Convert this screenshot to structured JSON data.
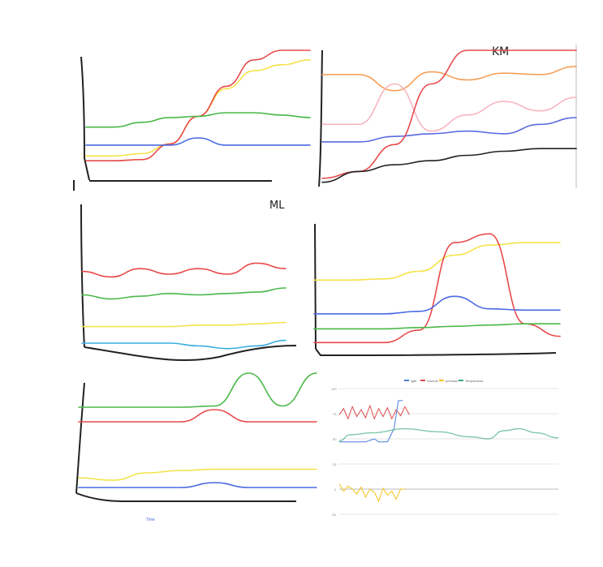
{
  "annotations": {
    "top_right_initials": "KM",
    "middle_left_initials": "ML",
    "bottom_left_axis_text": "Time"
  },
  "legend": {
    "items": [
      {
        "label": "light",
        "color": "#4a7fe0"
      },
      {
        "label": "Sounds",
        "color": "#e04b4b"
      },
      {
        "label": "pressure",
        "color": "#f2c21b"
      },
      {
        "label": "Temperature",
        "color": "#3cab7a"
      }
    ]
  },
  "chart_data": [
    {
      "type": "line",
      "style": "hand-drawn sketch",
      "panel": "top-left",
      "series": [
        {
          "color": "#f4e34a",
          "values": [
            0.12,
            0.12,
            0.14,
            0.22,
            0.45,
            0.68,
            0.83,
            0.88,
            0.92
          ]
        },
        {
          "color": "#e84a4a",
          "values": [
            0.08,
            0.08,
            0.09,
            0.22,
            0.45,
            0.7,
            0.92,
            1.0,
            1.0
          ]
        },
        {
          "color": "#4ab84a",
          "values": [
            0.36,
            0.36,
            0.4,
            0.44,
            0.45,
            0.48,
            0.48,
            0.46,
            0.44
          ]
        },
        {
          "color": "#4a6ae0",
          "values": [
            0.21,
            0.21,
            0.21,
            0.21,
            0.27,
            0.21,
            0.21,
            0.21,
            0.21
          ]
        }
      ]
    },
    {
      "type": "line",
      "style": "hand-drawn sketch",
      "panel": "top-right",
      "series": [
        {
          "color": "#f5a05a",
          "values": [
            0.82,
            0.82,
            0.7,
            0.84,
            0.78,
            0.83,
            0.82,
            0.88
          ]
        },
        {
          "color": "#f7b5c0",
          "values": [
            0.45,
            0.45,
            0.75,
            0.4,
            0.52,
            0.62,
            0.55,
            0.65
          ]
        },
        {
          "color": "#5a6ae0",
          "values": [
            0.32,
            0.32,
            0.36,
            0.38,
            0.4,
            0.38,
            0.45,
            0.5
          ]
        },
        {
          "color": "#e84a4a",
          "values": [
            0.05,
            0.1,
            0.3,
            0.75,
            1.0,
            1.0,
            1.0,
            1.0
          ]
        },
        {
          "color": "#222222",
          "values": [
            0.02,
            0.1,
            0.15,
            0.18,
            0.22,
            0.25,
            0.27,
            0.27
          ]
        }
      ]
    },
    {
      "type": "line",
      "style": "hand-drawn sketch",
      "panel": "middle-left",
      "series": [
        {
          "color": "#e84a4a",
          "values": [
            0.62,
            0.58,
            0.64,
            0.6,
            0.64,
            0.6,
            0.68,
            0.64
          ]
        },
        {
          "color": "#4ab84a",
          "values": [
            0.45,
            0.42,
            0.44,
            0.46,
            0.45,
            0.46,
            0.47,
            0.5
          ]
        },
        {
          "color": "#f4e34a",
          "values": [
            0.22,
            0.22,
            0.22,
            0.22,
            0.23,
            0.23,
            0.24,
            0.25
          ]
        },
        {
          "color": "#3aaee0",
          "values": [
            0.1,
            0.1,
            0.1,
            0.1,
            0.08,
            0.06,
            0.08,
            0.12
          ]
        }
      ]
    },
    {
      "type": "line",
      "style": "hand-drawn sketch",
      "panel": "middle-right",
      "series": [
        {
          "color": "#f4e34a",
          "values": [
            0.55,
            0.55,
            0.56,
            0.62,
            0.75,
            0.83,
            0.85,
            0.85
          ]
        },
        {
          "color": "#e84a4a",
          "values": [
            0.05,
            0.05,
            0.05,
            0.15,
            0.85,
            0.92,
            0.2,
            0.1
          ]
        },
        {
          "color": "#4a6ae0",
          "values": [
            0.28,
            0.28,
            0.28,
            0.3,
            0.42,
            0.32,
            0.31,
            0.31
          ]
        },
        {
          "color": "#4ab84a",
          "values": [
            0.16,
            0.16,
            0.16,
            0.17,
            0.18,
            0.19,
            0.2,
            0.2
          ]
        }
      ]
    },
    {
      "type": "line",
      "style": "hand-drawn sketch",
      "panel": "bottom-left",
      "series": [
        {
          "color": "#4ab84a",
          "values": [
            0.72,
            0.72,
            0.72,
            0.72,
            0.73,
            1.0,
            0.73,
            1.0
          ]
        },
        {
          "color": "#e84a4a",
          "values": [
            0.6,
            0.6,
            0.6,
            0.6,
            0.7,
            0.6,
            0.6,
            0.6
          ]
        },
        {
          "color": "#f4e34a",
          "values": [
            0.14,
            0.12,
            0.18,
            0.2,
            0.21,
            0.21,
            0.21,
            0.21
          ]
        },
        {
          "color": "#4a6ae0",
          "values": [
            0.06,
            0.06,
            0.06,
            0.06,
            0.1,
            0.06,
            0.06,
            0.06
          ]
        }
      ]
    },
    {
      "type": "line",
      "panel": "bottom-right",
      "ylim": [
        -10,
        100
      ],
      "yticks": [
        "100",
        "75",
        "50",
        "25",
        "0",
        "-25"
      ],
      "legend_placement": "top",
      "grid": true,
      "series": [
        {
          "name": "Sounds",
          "color": "#e04b4b",
          "x": [
            0,
            0.02,
            0.04,
            0.06,
            0.08,
            0.1,
            0.12,
            0.14,
            0.16,
            0.18,
            0.2,
            0.22,
            0.24,
            0.26,
            0.28,
            0.3,
            0.32
          ],
          "values": [
            74,
            80,
            70,
            82,
            72,
            79,
            71,
            83,
            70,
            80,
            72,
            81,
            70,
            79,
            73,
            82,
            74
          ]
        },
        {
          "name": "light",
          "color": "#4a7fe0",
          "x": [
            0,
            0.12,
            0.16,
            0.18,
            0.22,
            0.25,
            0.27,
            0.29
          ],
          "values": [
            47,
            47,
            50,
            47,
            47,
            60,
            88,
            88
          ]
        },
        {
          "name": "Temperature",
          "color": "#3cab7a",
          "x": [
            0,
            0.05,
            0.15,
            0.3,
            0.45,
            0.6,
            0.68,
            0.75,
            0.82,
            0.9,
            1.0
          ],
          "values": [
            48,
            54,
            56,
            60,
            57,
            52,
            50,
            58,
            60,
            56,
            51
          ]
        },
        {
          "name": "pressure",
          "color": "#f2c21b",
          "x": [
            0,
            0.02,
            0.04,
            0.06,
            0.08,
            0.1,
            0.12,
            0.14,
            0.16,
            0.18,
            0.2,
            0.22,
            0.24,
            0.26,
            0.28,
            0.3
          ],
          "values": [
            5,
            -2,
            3,
            0,
            -5,
            2,
            -8,
            0,
            -3,
            -12,
            1,
            -6,
            -2,
            -10,
            0,
            0
          ]
        }
      ]
    }
  ]
}
